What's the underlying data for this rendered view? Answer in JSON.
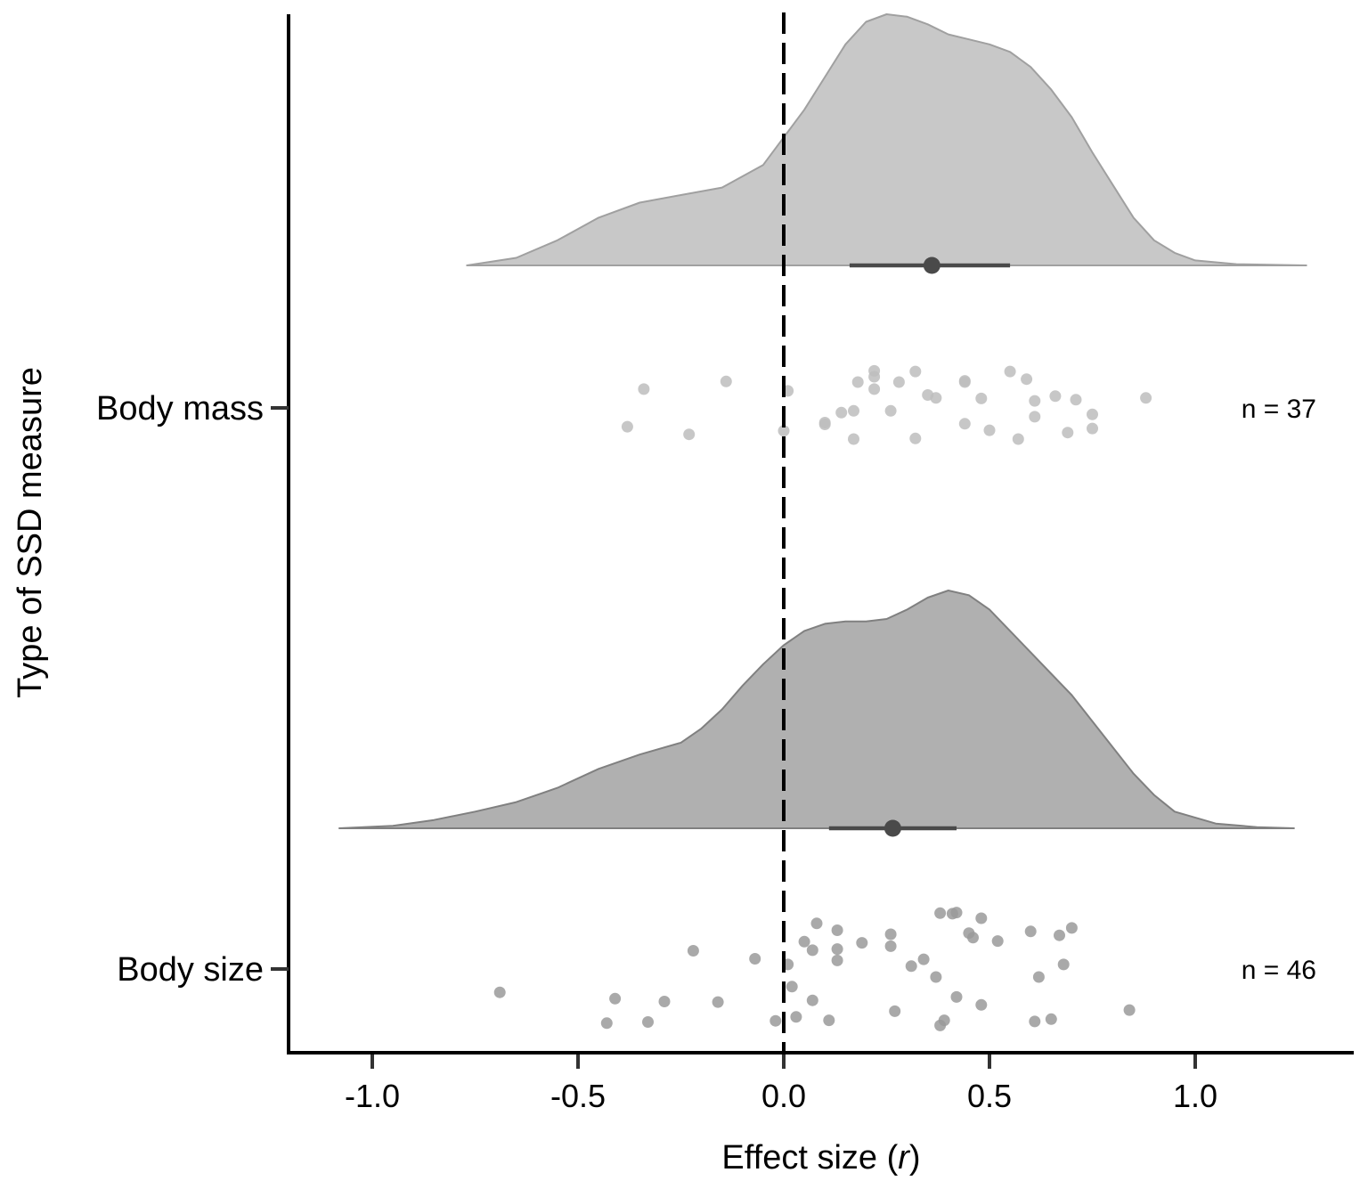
{
  "chart_data": {
    "type": "raincloud",
    "xlabel": "Effect size",
    "xlabel_var": "r",
    "xlabel_open": "(",
    "xlabel_close": ")",
    "ylabel": "Type of SSD measure",
    "xlim": [
      -1.2,
      1.4
    ],
    "xticks": [
      -1.0,
      -0.5,
      0.0,
      0.5,
      1.0
    ],
    "xtick_labels": [
      "-1.0",
      "-0.5",
      "0.0",
      "0.5",
      "1.0"
    ],
    "reference_line": 0.0,
    "groups": [
      {
        "name": "Body mass",
        "n_label": "n = 37",
        "fill": "#c8c8c8",
        "stroke": "#a0a0a0",
        "point_color": "#bdbdbd",
        "mean": 0.36,
        "ci": [
          0.16,
          0.55
        ],
        "density": [
          [
            -0.77,
            0.0
          ],
          [
            -0.65,
            0.03
          ],
          [
            -0.55,
            0.1
          ],
          [
            -0.45,
            0.19
          ],
          [
            -0.35,
            0.25
          ],
          [
            -0.25,
            0.28
          ],
          [
            -0.15,
            0.31
          ],
          [
            -0.05,
            0.4
          ],
          [
            0.0,
            0.51
          ],
          [
            0.05,
            0.62
          ],
          [
            0.1,
            0.75
          ],
          [
            0.15,
            0.88
          ],
          [
            0.2,
            0.97
          ],
          [
            0.25,
            1.0
          ],
          [
            0.3,
            0.99
          ],
          [
            0.35,
            0.96
          ],
          [
            0.4,
            0.92
          ],
          [
            0.45,
            0.9
          ],
          [
            0.5,
            0.88
          ],
          [
            0.55,
            0.85
          ],
          [
            0.6,
            0.79
          ],
          [
            0.65,
            0.7
          ],
          [
            0.7,
            0.59
          ],
          [
            0.75,
            0.45
          ],
          [
            0.8,
            0.32
          ],
          [
            0.85,
            0.19
          ],
          [
            0.9,
            0.1
          ],
          [
            0.95,
            0.05
          ],
          [
            1.0,
            0.02
          ],
          [
            1.1,
            0.005
          ],
          [
            1.27,
            0.0
          ]
        ],
        "points": [
          [
            -0.34,
            0.32
          ],
          [
            -0.38,
            -0.32
          ],
          [
            -0.23,
            -0.45
          ],
          [
            -0.14,
            0.45
          ],
          [
            0.01,
            0.29
          ],
          [
            0.0,
            -0.39
          ],
          [
            0.1,
            -0.25
          ],
          [
            0.1,
            -0.28
          ],
          [
            0.14,
            -0.08
          ],
          [
            0.17,
            -0.05
          ],
          [
            0.17,
            -0.53
          ],
          [
            0.18,
            0.44
          ],
          [
            0.22,
            0.63
          ],
          [
            0.22,
            0.53
          ],
          [
            0.22,
            0.32
          ],
          [
            0.26,
            -0.05
          ],
          [
            0.28,
            0.44
          ],
          [
            0.32,
            0.62
          ],
          [
            0.32,
            -0.52
          ],
          [
            0.35,
            0.22
          ],
          [
            0.37,
            0.17
          ],
          [
            0.44,
            0.44
          ],
          [
            0.44,
            0.46
          ],
          [
            0.44,
            -0.27
          ],
          [
            0.48,
            0.16
          ],
          [
            0.5,
            -0.38
          ],
          [
            0.55,
            0.62
          ],
          [
            0.57,
            -0.53
          ],
          [
            0.59,
            0.49
          ],
          [
            0.61,
            0.12
          ],
          [
            0.61,
            -0.15
          ],
          [
            0.66,
            0.2
          ],
          [
            0.69,
            -0.42
          ],
          [
            0.71,
            0.14
          ],
          [
            0.75,
            -0.11
          ],
          [
            0.75,
            -0.35
          ],
          [
            0.88,
            0.17
          ]
        ]
      },
      {
        "name": "Body size",
        "n_label": "n = 46",
        "fill": "#b0b0b0",
        "stroke": "#808080",
        "point_color": "#9a9a9a",
        "mean": 0.265,
        "ci": [
          0.11,
          0.42
        ],
        "density": [
          [
            -1.08,
            0.0
          ],
          [
            -0.95,
            0.01
          ],
          [
            -0.85,
            0.035
          ],
          [
            -0.75,
            0.07
          ],
          [
            -0.65,
            0.11
          ],
          [
            -0.55,
            0.17
          ],
          [
            -0.45,
            0.25
          ],
          [
            -0.35,
            0.31
          ],
          [
            -0.25,
            0.36
          ],
          [
            -0.2,
            0.42
          ],
          [
            -0.15,
            0.5
          ],
          [
            -0.1,
            0.6
          ],
          [
            -0.05,
            0.69
          ],
          [
            0.0,
            0.77
          ],
          [
            0.05,
            0.83
          ],
          [
            0.1,
            0.86
          ],
          [
            0.15,
            0.87
          ],
          [
            0.2,
            0.87
          ],
          [
            0.25,
            0.88
          ],
          [
            0.3,
            0.92
          ],
          [
            0.35,
            0.97
          ],
          [
            0.4,
            1.0
          ],
          [
            0.45,
            0.98
          ],
          [
            0.5,
            0.92
          ],
          [
            0.55,
            0.83
          ],
          [
            0.6,
            0.74
          ],
          [
            0.65,
            0.65
          ],
          [
            0.7,
            0.56
          ],
          [
            0.75,
            0.45
          ],
          [
            0.8,
            0.34
          ],
          [
            0.85,
            0.23
          ],
          [
            0.9,
            0.14
          ],
          [
            0.95,
            0.07
          ],
          [
            1.05,
            0.02
          ],
          [
            1.15,
            0.005
          ],
          [
            1.24,
            0.0
          ]
        ],
        "points": [
          [
            -0.69,
            -0.41
          ],
          [
            -0.43,
            -0.95
          ],
          [
            -0.41,
            -0.52
          ],
          [
            -0.33,
            -0.93
          ],
          [
            -0.29,
            -0.57
          ],
          [
            -0.22,
            0.32
          ],
          [
            -0.16,
            -0.58
          ],
          [
            -0.07,
            0.18
          ],
          [
            -0.02,
            -0.91
          ],
          [
            0.01,
            0.08
          ],
          [
            0.02,
            -0.31
          ],
          [
            0.03,
            -0.84
          ],
          [
            0.05,
            0.48
          ],
          [
            0.07,
            0.33
          ],
          [
            0.07,
            -0.55
          ],
          [
            0.08,
            0.8
          ],
          [
            0.11,
            -0.9
          ],
          [
            0.13,
            0.68
          ],
          [
            0.13,
            0.35
          ],
          [
            0.13,
            0.15
          ],
          [
            0.19,
            0.46
          ],
          [
            0.26,
            0.61
          ],
          [
            0.26,
            0.4
          ],
          [
            0.27,
            -0.74
          ],
          [
            0.31,
            0.05
          ],
          [
            0.34,
            0.17
          ],
          [
            0.37,
            -0.14
          ],
          [
            0.38,
            0.98
          ],
          [
            0.38,
            -0.99
          ],
          [
            0.39,
            -0.9
          ],
          [
            0.41,
            0.97
          ],
          [
            0.42,
            0.99
          ],
          [
            0.42,
            -0.49
          ],
          [
            0.45,
            0.63
          ],
          [
            0.46,
            0.55
          ],
          [
            0.48,
            -0.63
          ],
          [
            0.48,
            0.89
          ],
          [
            0.52,
            0.49
          ],
          [
            0.6,
            0.66
          ],
          [
            0.61,
            -0.92
          ],
          [
            0.62,
            -0.14
          ],
          [
            0.65,
            -0.88
          ],
          [
            0.67,
            0.59
          ],
          [
            0.68,
            0.08
          ],
          [
            0.7,
            0.72
          ],
          [
            0.84,
            -0.72
          ]
        ]
      }
    ],
    "grid": false,
    "legend": "none"
  }
}
